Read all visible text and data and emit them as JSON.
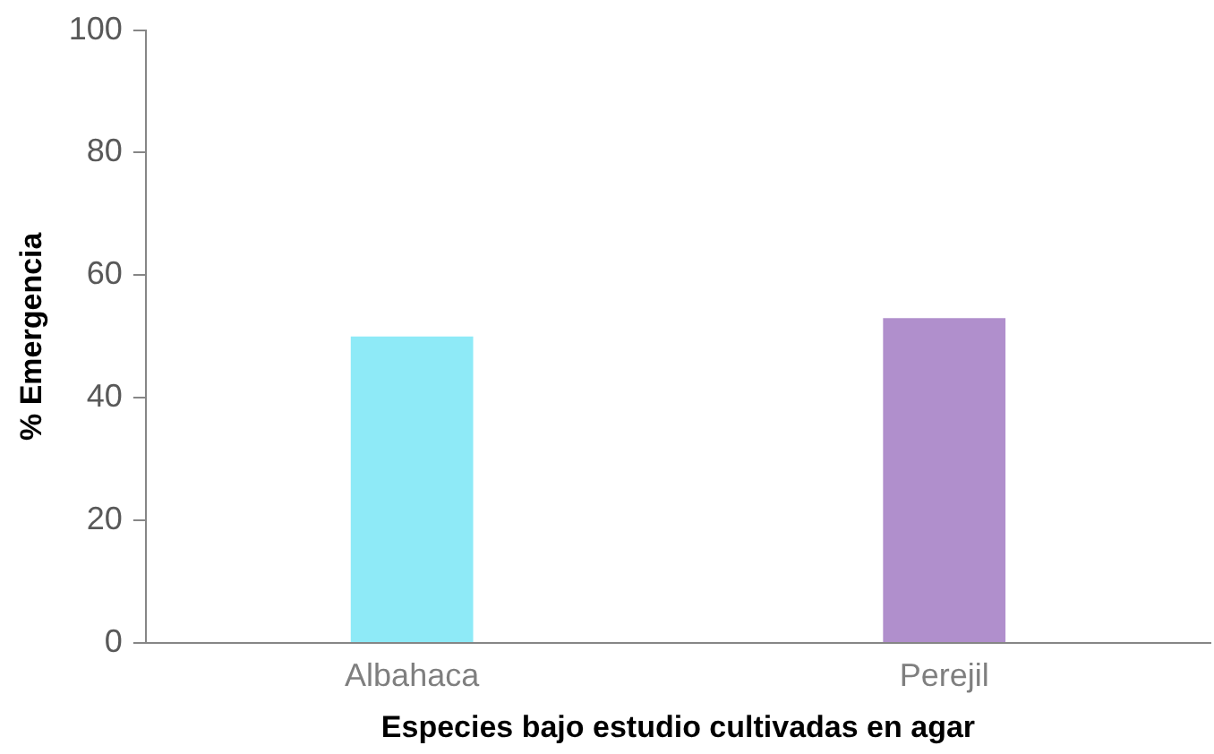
{
  "chart_data": {
    "type": "bar",
    "xlabel": "Especies bajo estudio cultivadas en agar",
    "ylabel": "% Emergencia",
    "categories": [
      "Albahaca",
      "Perejil"
    ],
    "values": [
      50,
      53
    ],
    "colors": [
      "#8eeaf7",
      "#b08fcc"
    ],
    "ylim": [
      0,
      100
    ],
    "yticks": [
      0,
      20,
      40,
      60,
      80,
      100
    ],
    "grid": false,
    "legend": false
  }
}
